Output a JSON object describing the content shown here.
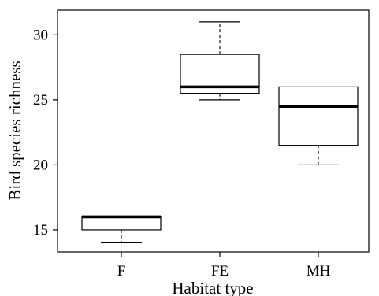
{
  "chart_data": {
    "type": "boxplot",
    "xlabel": "Habitat type",
    "ylabel": "Bird species richness",
    "ylim": [
      13.3,
      31.9
    ],
    "yticks": [
      15,
      20,
      25,
      30
    ],
    "grid": false,
    "categories": [
      "F",
      "FE",
      "MH"
    ],
    "boxes": [
      {
        "category": "F",
        "min": 14,
        "q1": 15,
        "median": 16,
        "q3": 16,
        "max": 16
      },
      {
        "category": "FE",
        "min": 25,
        "q1": 25.5,
        "median": 26,
        "q3": 28.5,
        "max": 31
      },
      {
        "category": "MH",
        "min": 20,
        "q1": 21.5,
        "median": 24.5,
        "q3": 26,
        "max": 26
      }
    ]
  }
}
